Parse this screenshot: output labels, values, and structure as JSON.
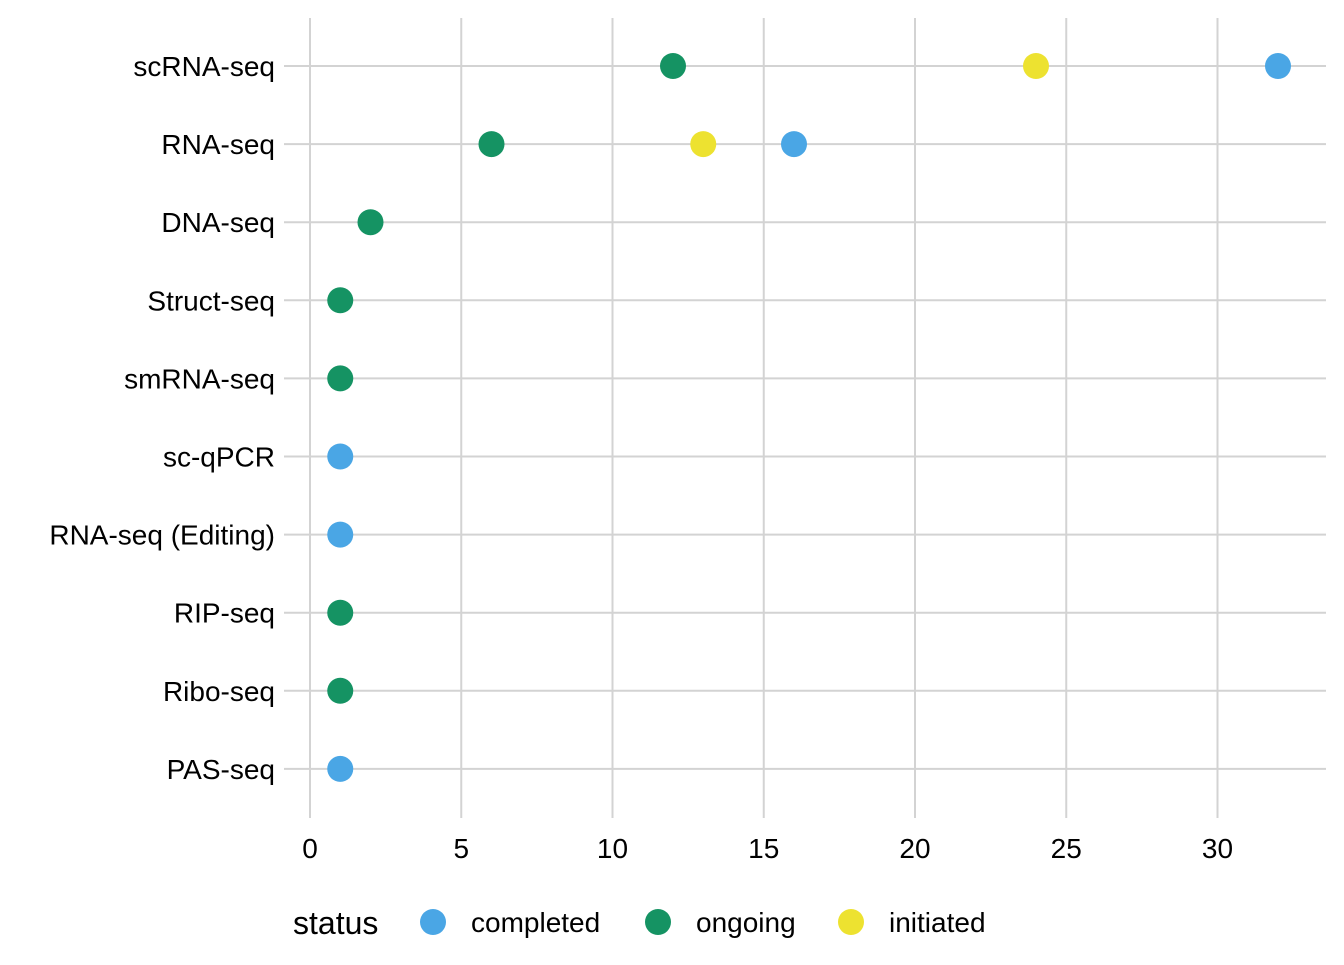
{
  "chart_data": {
    "type": "scatter",
    "title": "",
    "xlabel": "",
    "ylabel": "",
    "xlim": [
      0,
      33.5
    ],
    "x_ticks": [
      0,
      5,
      10,
      15,
      20,
      25,
      30
    ],
    "x_tick_labels": [
      "0",
      "5",
      "10",
      "15",
      "20",
      "25",
      "30"
    ],
    "categories": [
      "scRNA-seq",
      "RNA-seq",
      "DNA-seq",
      "Struct-seq",
      "smRNA-seq",
      "sc-qPCR",
      "RNA-seq (Editing)",
      "RIP-seq",
      "Ribo-seq",
      "PAS-seq"
    ],
    "grid": true,
    "legend": {
      "title": "status",
      "position": "bottom"
    },
    "series": [
      {
        "name": "completed",
        "color": "#4aa6e5",
        "points": [
          {
            "category": "scRNA-seq",
            "x": 32
          },
          {
            "category": "RNA-seq",
            "x": 16
          },
          {
            "category": "sc-qPCR",
            "x": 1
          },
          {
            "category": "RNA-seq (Editing)",
            "x": 1
          },
          {
            "category": "PAS-seq",
            "x": 1
          }
        ]
      },
      {
        "name": "ongoing",
        "color": "#159363",
        "points": [
          {
            "category": "scRNA-seq",
            "x": 12
          },
          {
            "category": "RNA-seq",
            "x": 6
          },
          {
            "category": "DNA-seq",
            "x": 2
          },
          {
            "category": "Struct-seq",
            "x": 1
          },
          {
            "category": "smRNA-seq",
            "x": 1
          },
          {
            "category": "RIP-seq",
            "x": 1
          },
          {
            "category": "Ribo-seq",
            "x": 1
          }
        ]
      },
      {
        "name": "initiated",
        "color": "#ede230",
        "points": [
          {
            "category": "scRNA-seq",
            "x": 24
          },
          {
            "category": "RNA-seq",
            "x": 13
          }
        ]
      }
    ]
  }
}
